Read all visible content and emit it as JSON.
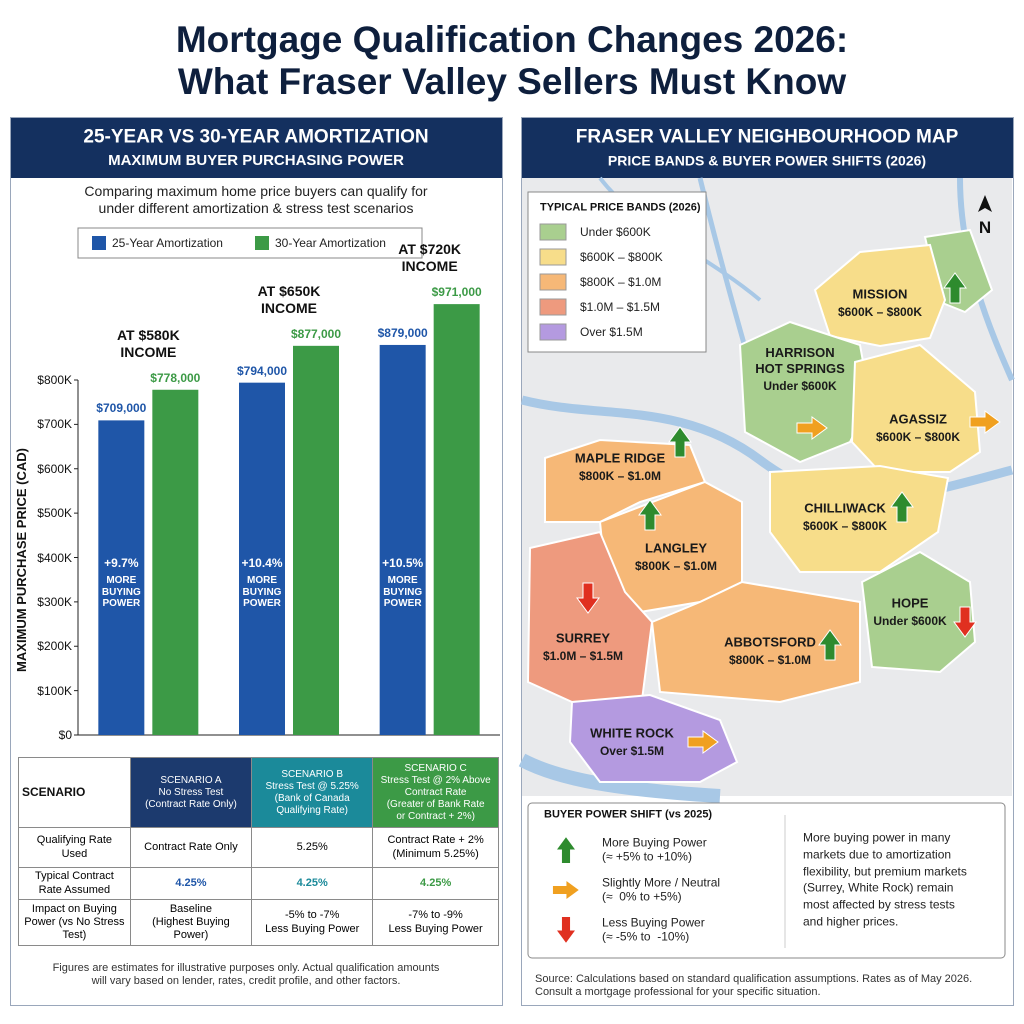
{
  "title_lines": [
    "Mortgage Qualification Changes 2026:",
    "What Fraser Valley Sellers Must Know"
  ],
  "left_panel": {
    "heading": "25-YEAR VS 30-YEAR AMORTIZATION",
    "subheading": "MAXIMUM BUYER PURCHASING POWER",
    "description": "Comparing maximum home price buyers can qualify for\nunder different amortization & stress test scenarios"
  },
  "chart_data": {
    "type": "bar",
    "y_label": "MAXIMUM PURCHASE PRICE (CAD)",
    "categories": [
      "AT $580K\nINCOME",
      "AT $650K\nINCOME",
      "AT $720K\nINCOME"
    ],
    "series": [
      {
        "name": "25-Year Amortization",
        "color": "#1f56a8",
        "values": [
          709000,
          794000,
          879000
        ],
        "value_labels": [
          "$709,000",
          "$794,000",
          "$879,000"
        ]
      },
      {
        "name": "30-Year Amortization",
        "color": "#3c9a46",
        "values": [
          778000,
          877000,
          971000
        ],
        "value_labels": [
          "$778,000",
          "$877,000",
          "$971,000"
        ]
      }
    ],
    "ylim": [
      0,
      800000
    ],
    "yticks": [
      {
        "value": 0,
        "label": "$0"
      },
      {
        "value": 100000,
        "label": "$100K"
      },
      {
        "value": 200000,
        "label": "$200K"
      },
      {
        "value": 300000,
        "label": "$300K"
      },
      {
        "value": 400000,
        "label": "$400K"
      },
      {
        "value": 500000,
        "label": "$500K"
      },
      {
        "value": 600000,
        "label": "$600K"
      },
      {
        "value": 700000,
        "label": "$700K"
      },
      {
        "value": 800000,
        "label": "$800K"
      }
    ],
    "annotations": [
      {
        "label": "+9.7%",
        "text": "MORE\nBUYING\nPOWER"
      },
      {
        "label": "+10.4%",
        "text": "MORE\nBUYING\nPOWER"
      },
      {
        "label": "+10.5%",
        "text": "MORE\nBUYING\nPOWER"
      }
    ]
  },
  "scenario_table": {
    "header": [
      "SCENARIO",
      "SCENARIO A\nNo Stress Test\n(Contract Rate Only)",
      "SCENARIO B\nStress Test @ 5.25%\n(Bank of Canada\nQualifying Rate)",
      "SCENARIO C\nStress Test @ 2% Above\nContract Rate\n(Greater of Bank Rate\nor Contract + 2%)"
    ],
    "rows": [
      [
        "Qualifying Rate\nUsed",
        "Contract Rate Only",
        "5.25%",
        "Contract Rate + 2%\n(Minimum 5.25%)"
      ],
      [
        "Typical Contract\nRate Assumed",
        "4.25%",
        "4.25%",
        "4.25%"
      ],
      [
        "Impact on Buying\nPower (vs No Stress\nTest)",
        "Baseline\n(Highest Buying Power)",
        "-5% to -7%\nLess Buying Power",
        "-7% to -9%\nLess Buying Power"
      ]
    ]
  },
  "footnote": "Figures are estimates for illustrative purposes only. Actual qualification amounts\nwill vary based on lender, rates, credit profile, and other factors.",
  "map": {
    "heading": "FRASER VALLEY NEIGHBOURHOOD MAP",
    "subheading": "PRICE BANDS & BUYER POWER SHIFTS (2026)",
    "north": "N",
    "legend_title": "TYPICAL PRICE BANDS (2026)",
    "bands": [
      {
        "label": "Under $600K",
        "color": "#a9cf8f"
      },
      {
        "label": "$600K – $800K",
        "color": "#f7dd8a"
      },
      {
        "label": "$800K – $1.0M",
        "color": "#f6b877"
      },
      {
        "label": "$1.0M – $1.5M",
        "color": "#ee9a7e"
      },
      {
        "label": "Over $1.5M",
        "color": "#b49ae0"
      }
    ],
    "regions": [
      {
        "name": "MISSION",
        "band": "$600K – $800K",
        "color": "#f7dd8a",
        "shift": "up"
      },
      {
        "name": "HARRISON\nHOT SPRINGS",
        "band": "Under $600K",
        "color": "#a9cf8f",
        "shift": "neutral"
      },
      {
        "name": "AGASSIZ",
        "band": "$600K – $800K",
        "color": "#f7dd8a",
        "shift": "neutral"
      },
      {
        "name": "MAPLE RIDGE",
        "band": "$800K – $1.0M",
        "color": "#f6b877",
        "shift": "up"
      },
      {
        "name": "LANGLEY",
        "band": "$800K – $1.0M",
        "color": "#f6b877",
        "shift": "up"
      },
      {
        "name": "CHILLIWACK",
        "band": "$600K – $800K",
        "color": "#f7dd8a",
        "shift": "up"
      },
      {
        "name": "HOPE",
        "band": "Under $600K",
        "color": "#a9cf8f",
        "shift": "down"
      },
      {
        "name": "SURREY",
        "band": "$1.0M – $1.5M",
        "color": "#ee9a7e",
        "shift": "down"
      },
      {
        "name": "ABBOTSFORD",
        "band": "$800K – $1.0M",
        "color": "#f6b877",
        "shift": "up"
      },
      {
        "name": "WHITE ROCK",
        "band": "Over $1.5M",
        "color": "#b49ae0",
        "shift": "neutral"
      }
    ]
  },
  "shift_legend": {
    "title": "BUYER POWER SHIFT (vs 2025)",
    "items": [
      {
        "label": "More Buying Power\n(≈ +5% to +10%)",
        "shift": "up",
        "color": "#2e8b2e"
      },
      {
        "label": "Slightly More / Neutral\n(≈  0% to +5%)",
        "shift": "neutral",
        "color": "#f0a020"
      },
      {
        "label": "Less Buying Power\n(≈ -5% to  -10%)",
        "shift": "down",
        "color": "#e03020"
      }
    ],
    "note": "More buying power in many\nmarkets due to amortization\nflexibility, but premium markets\n(Surrey, White Rock) remain\nmost affected by stress tests\nand higher prices."
  },
  "source": "Source: Calculations based on standard qualification assumptions. Rates as of May 2026.\nConsult a mortgage professional for your specific situation."
}
